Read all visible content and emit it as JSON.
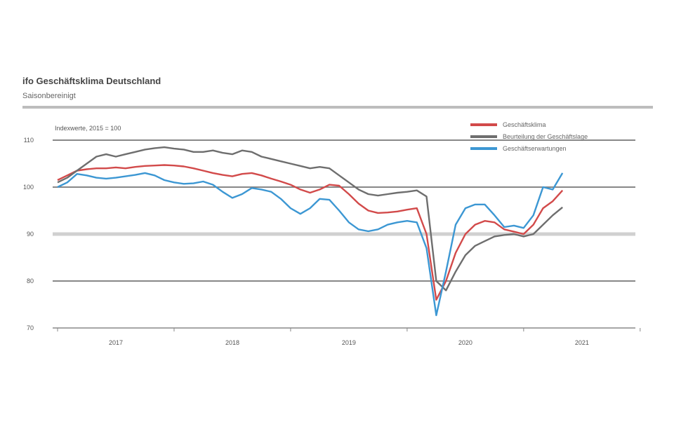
{
  "chart_data": {
    "type": "line",
    "title": "ifo Geschäftsklima Deutschland",
    "subtitle": "Saisonbereinigt",
    "annotation": "Indexwerte, 2015 = 100",
    "xlabel": "",
    "ylabel": "",
    "ylim": [
      70,
      110
    ],
    "yticks": [
      110,
      100,
      90,
      80,
      70
    ],
    "xtick_labels": [
      "2017",
      "2018",
      "2019",
      "2020",
      "2021"
    ],
    "x_start": "2017-01",
    "x_frequency": "monthly",
    "legend_position": "top-right",
    "grid": true,
    "series": [
      {
        "name": "Geschäftsklima",
        "color": "#d24a4a",
        "values": [
          101.5,
          102.5,
          103.5,
          103.8,
          104,
          104,
          104.2,
          104,
          104.3,
          104.5,
          104.6,
          104.7,
          104.6,
          104.4,
          104,
          103.5,
          103,
          102.6,
          102.3,
          102.8,
          103,
          102.5,
          101.8,
          101.2,
          100.5,
          99.5,
          98.8,
          99.5,
          100.5,
          100.3,
          98.5,
          96.5,
          95,
          94.5,
          94.6,
          94.8,
          95.2,
          95.5,
          90,
          76,
          80,
          86,
          90,
          92,
          92.8,
          92.5,
          91,
          90.5,
          90,
          92,
          95.5,
          97,
          99.3
        ]
      },
      {
        "name": "Beurteilung der Geschäftslage",
        "color": "#6e6e6e",
        "values": [
          101,
          102,
          103.5,
          105,
          106.5,
          107,
          106.5,
          107,
          107.5,
          108,
          108.3,
          108.5,
          108.2,
          108,
          107.5,
          107.5,
          107.8,
          107.3,
          107,
          107.8,
          107.5,
          106.5,
          106,
          105.5,
          105,
          104.5,
          104,
          104.3,
          104,
          102.5,
          101,
          99.5,
          98.5,
          98.2,
          98.5,
          98.8,
          99,
          99.3,
          98,
          80,
          78,
          82,
          85.5,
          87.5,
          88.5,
          89.5,
          89.8,
          90,
          89.5,
          90,
          92,
          94,
          95.7
        ]
      },
      {
        "name": "Geschäftserwartungen",
        "color": "#3c97d3",
        "values": [
          100,
          101,
          102.8,
          102.5,
          102,
          101.8,
          102,
          102.3,
          102.6,
          103,
          102.5,
          101.5,
          101,
          100.7,
          100.8,
          101.2,
          100.5,
          99,
          97.7,
          98.5,
          99.8,
          99.5,
          99,
          97.5,
          95.5,
          94.3,
          95.5,
          97.5,
          97.3,
          95,
          92.5,
          91,
          90.6,
          91,
          92,
          92.5,
          92.8,
          92.5,
          87,
          72.7,
          82,
          92,
          95.5,
          96.3,
          96.3,
          94,
          91.5,
          91.8,
          91.3,
          94,
          100,
          99.5,
          103
        ]
      }
    ]
  }
}
